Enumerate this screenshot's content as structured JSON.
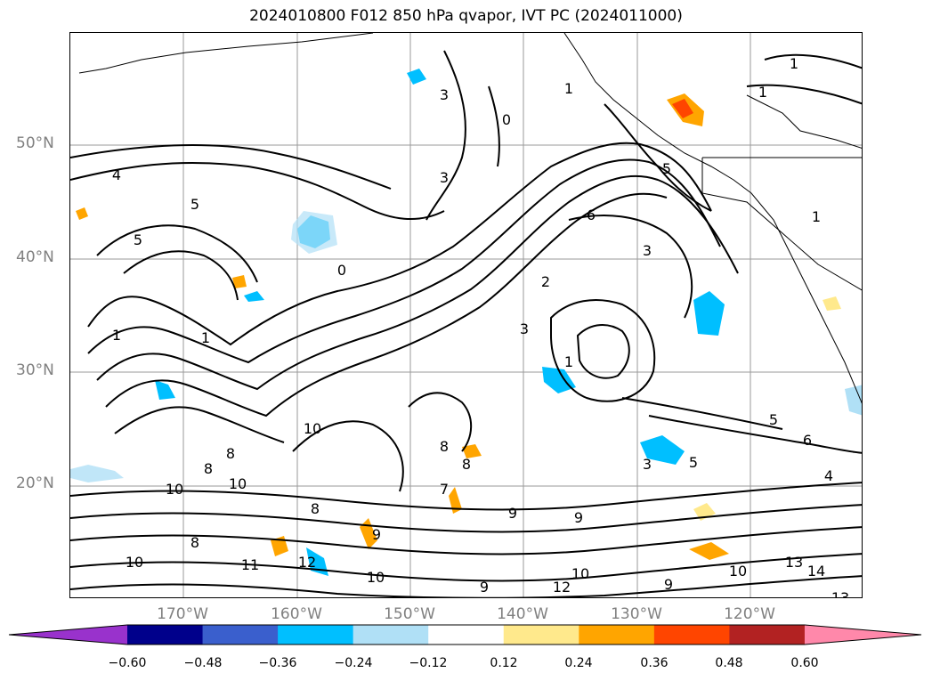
{
  "title": "2024010800 F012 850 hPa qvapor, IVT PC (2024011000)",
  "map": {
    "lat_labels": [
      "50°N",
      "40°N",
      "30°N",
      "20°N"
    ],
    "lon_labels": [
      "170°W",
      "160°W",
      "150°W",
      "140°W",
      "130°W",
      "120°W"
    ],
    "contour_labels": [
      "1",
      "2",
      "3",
      "4",
      "5",
      "0",
      "6",
      "7",
      "8",
      "9",
      "10",
      "11",
      "12",
      "13",
      "14"
    ]
  },
  "colorbar": {
    "tick_labels": [
      "−0.60",
      "−0.48",
      "−0.36",
      "−0.24",
      "−0.12",
      "0.12",
      "0.24",
      "0.36",
      "0.48",
      "0.60"
    ],
    "colors": [
      "#9932cc",
      "#00008b",
      "#3a5fcd",
      "#00bfff",
      "#b0e0f6",
      "#ffffff",
      "#ffe98c",
      "#ffa500",
      "#ff4500",
      "#b22222",
      "#ff88aa"
    ]
  }
}
